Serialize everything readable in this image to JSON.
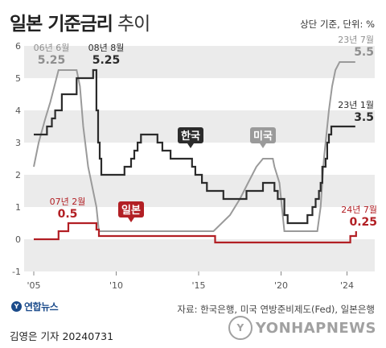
{
  "header": {
    "title": "일본 기준금리",
    "subtitle": "추이",
    "unit": "상단 기준, 단위: %"
  },
  "footer": {
    "logo_text": "연합뉴스",
    "source": "자료: 한국은행, 미국 연방준비제도(Fed), 일본은행",
    "credit": "김영은 기자  20240731",
    "watermark": "YONHAPNEWS"
  },
  "colors": {
    "korea": "#2b2b2b",
    "usa": "#9a9a9a",
    "japan": "#b21f24",
    "band": "#ebebeb"
  },
  "chart_data": {
    "type": "line",
    "xlim": [
      2005,
      2025
    ],
    "ylim": [
      -1,
      6
    ],
    "yticks": [
      -1,
      0,
      1,
      2,
      3,
      4,
      5,
      6
    ],
    "xticks": [
      {
        "value": 2005,
        "label": "'05"
      },
      {
        "value": 2010,
        "label": "'10"
      },
      {
        "value": 2015,
        "label": "'15"
      },
      {
        "value": 2020,
        "label": "'20"
      },
      {
        "value": 2024,
        "label": "'24"
      }
    ],
    "grid": true,
    "series": [
      {
        "name": "미국",
        "key": "usa",
        "points": [
          [
            2005.0,
            2.25
          ],
          [
            2005.3,
            3.0
          ],
          [
            2005.7,
            3.75
          ],
          [
            2006.0,
            4.25
          ],
          [
            2006.5,
            5.25
          ],
          [
            2007.6,
            5.25
          ],
          [
            2007.8,
            4.75
          ],
          [
            2008.0,
            3.5
          ],
          [
            2008.3,
            2.25
          ],
          [
            2008.8,
            1.0
          ],
          [
            2008.95,
            0.25
          ],
          [
            2015.9,
            0.25
          ],
          [
            2016.9,
            0.75
          ],
          [
            2017.5,
            1.25
          ],
          [
            2018.0,
            1.75
          ],
          [
            2018.5,
            2.25
          ],
          [
            2018.9,
            2.5
          ],
          [
            2019.5,
            2.5
          ],
          [
            2019.6,
            2.25
          ],
          [
            2019.9,
            1.75
          ],
          [
            2020.2,
            0.25
          ],
          [
            2022.2,
            0.25
          ],
          [
            2022.4,
            1.0
          ],
          [
            2022.6,
            2.5
          ],
          [
            2022.9,
            4.0
          ],
          [
            2023.1,
            4.75
          ],
          [
            2023.3,
            5.25
          ],
          [
            2023.55,
            5.5
          ],
          [
            2024.5,
            5.5
          ]
        ],
        "labels": [
          {
            "date": "06년 6월",
            "value": "5.25"
          },
          {
            "date": "23년 7월",
            "value": "5.5"
          }
        ]
      },
      {
        "name": "한국",
        "key": "korea",
        "points": [
          [
            2005.0,
            3.25
          ],
          [
            2005.8,
            3.25
          ],
          [
            2005.8,
            3.5
          ],
          [
            2006.1,
            3.5
          ],
          [
            2006.1,
            3.75
          ],
          [
            2006.3,
            3.75
          ],
          [
            2006.3,
            4.0
          ],
          [
            2006.7,
            4.0
          ],
          [
            2006.7,
            4.5
          ],
          [
            2007.6,
            4.5
          ],
          [
            2007.6,
            5.0
          ],
          [
            2008.6,
            5.0
          ],
          [
            2008.6,
            5.25
          ],
          [
            2008.8,
            5.25
          ],
          [
            2008.8,
            4.0
          ],
          [
            2008.9,
            4.0
          ],
          [
            2008.9,
            3.0
          ],
          [
            2009.0,
            3.0
          ],
          [
            2009.0,
            2.5
          ],
          [
            2009.1,
            2.5
          ],
          [
            2009.1,
            2.0
          ],
          [
            2010.5,
            2.0
          ],
          [
            2010.5,
            2.25
          ],
          [
            2010.9,
            2.25
          ],
          [
            2010.9,
            2.5
          ],
          [
            2011.1,
            2.5
          ],
          [
            2011.1,
            2.75
          ],
          [
            2011.3,
            2.75
          ],
          [
            2011.3,
            3.0
          ],
          [
            2011.5,
            3.0
          ],
          [
            2011.5,
            3.25
          ],
          [
            2012.5,
            3.25
          ],
          [
            2012.5,
            3.0
          ],
          [
            2012.8,
            3.0
          ],
          [
            2012.8,
            2.75
          ],
          [
            2013.3,
            2.75
          ],
          [
            2013.3,
            2.5
          ],
          [
            2014.6,
            2.5
          ],
          [
            2014.6,
            2.25
          ],
          [
            2014.8,
            2.25
          ],
          [
            2014.8,
            2.0
          ],
          [
            2015.2,
            2.0
          ],
          [
            2015.2,
            1.75
          ],
          [
            2015.5,
            1.75
          ],
          [
            2015.5,
            1.5
          ],
          [
            2016.5,
            1.5
          ],
          [
            2016.5,
            1.25
          ],
          [
            2017.9,
            1.25
          ],
          [
            2017.9,
            1.5
          ],
          [
            2018.9,
            1.5
          ],
          [
            2018.9,
            1.75
          ],
          [
            2019.6,
            1.75
          ],
          [
            2019.6,
            1.5
          ],
          [
            2019.8,
            1.5
          ],
          [
            2019.8,
            1.25
          ],
          [
            2020.2,
            1.25
          ],
          [
            2020.2,
            0.75
          ],
          [
            2020.4,
            0.75
          ],
          [
            2020.4,
            0.5
          ],
          [
            2021.6,
            0.5
          ],
          [
            2021.6,
            0.75
          ],
          [
            2021.9,
            0.75
          ],
          [
            2021.9,
            1.0
          ],
          [
            2022.1,
            1.0
          ],
          [
            2022.1,
            1.25
          ],
          [
            2022.3,
            1.25
          ],
          [
            2022.3,
            1.5
          ],
          [
            2022.4,
            1.5
          ],
          [
            2022.4,
            1.75
          ],
          [
            2022.5,
            1.75
          ],
          [
            2022.5,
            2.25
          ],
          [
            2022.7,
            2.25
          ],
          [
            2022.7,
            2.5
          ],
          [
            2022.8,
            2.5
          ],
          [
            2022.8,
            3.0
          ],
          [
            2022.9,
            3.0
          ],
          [
            2022.9,
            3.25
          ],
          [
            2023.05,
            3.25
          ],
          [
            2023.05,
            3.5
          ],
          [
            2024.5,
            3.5
          ]
        ],
        "labels": [
          {
            "date": "08년 8월",
            "value": "5.25"
          },
          {
            "date": "23년 1월",
            "value": "3.5"
          }
        ]
      },
      {
        "name": "일본",
        "key": "japan",
        "points": [
          [
            2005.0,
            0.0
          ],
          [
            2006.5,
            0.0
          ],
          [
            2006.5,
            0.25
          ],
          [
            2007.1,
            0.25
          ],
          [
            2007.1,
            0.5
          ],
          [
            2008.8,
            0.5
          ],
          [
            2008.8,
            0.3
          ],
          [
            2008.95,
            0.3
          ],
          [
            2008.95,
            0.1
          ],
          [
            2016.0,
            0.1
          ],
          [
            2016.0,
            -0.1
          ],
          [
            2024.2,
            -0.1
          ],
          [
            2024.2,
            0.1
          ],
          [
            2024.55,
            0.1
          ],
          [
            2024.55,
            0.25
          ]
        ],
        "labels": [
          {
            "date": "07년 2월",
            "value": "0.5"
          },
          {
            "date": "24년 7월",
            "value": "0.25"
          }
        ]
      }
    ]
  }
}
